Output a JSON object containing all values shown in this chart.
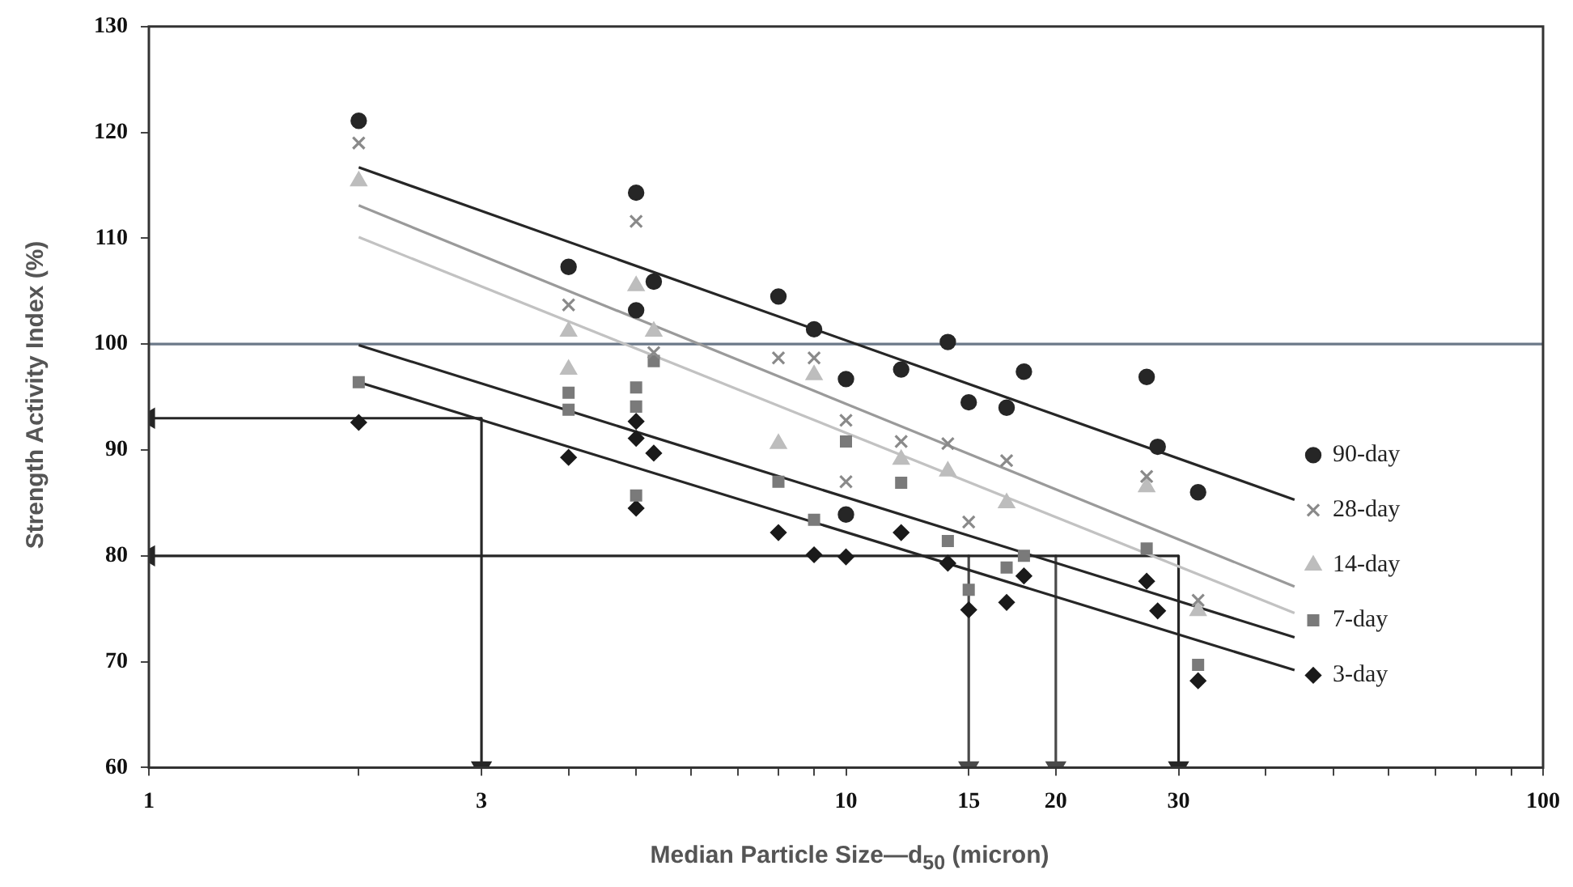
{
  "chart_data": {
    "type": "scatter",
    "xlabel": "Median Particle Size—d$_{50}$ (micron)",
    "ylabel": "Strength Activity Index (%)",
    "log": "x",
    "xlim": [
      1,
      100
    ],
    "ylim": [
      60,
      130
    ],
    "xticks": [
      1,
      {
        "value": 2,
        "label": null
      },
      3,
      {
        "value": 4,
        "label": null
      },
      {
        "value": 5,
        "label": null
      },
      {
        "value": 6,
        "label": null
      },
      {
        "value": 7,
        "label": null
      },
      {
        "value": 8,
        "label": null
      },
      {
        "value": 9,
        "label": null
      },
      10,
      15,
      20,
      30,
      {
        "value": 40,
        "label": null
      },
      {
        "value": 50,
        "label": null
      },
      {
        "value": 60,
        "label": null
      },
      {
        "value": 70,
        "label": null
      },
      {
        "value": 80,
        "label": null
      },
      {
        "value": 90,
        "label": null
      },
      100
    ],
    "yticks": [
      60,
      70,
      80,
      90,
      100,
      110,
      120,
      130
    ],
    "grid": false,
    "legend": "bottom right",
    "ref_lines": [
      {
        "axis": "y",
        "value": 100,
        "color": "#6b7888"
      }
    ],
    "series": [
      {
        "name": "90-day",
        "marker": "circle",
        "color": "#262626",
        "x": [
          2,
          4,
          5,
          5,
          5.3,
          8,
          9,
          10,
          10,
          12,
          14,
          15,
          17,
          18,
          27,
          28,
          32
        ],
        "values": [
          121.1,
          107.3,
          114.3,
          103.2,
          105.9,
          104.5,
          101.4,
          96.7,
          83.9,
          97.6,
          100.2,
          94.5,
          94.0,
          97.4,
          96.9,
          90.3,
          86.0
        ]
      },
      {
        "name": "28-day",
        "marker": "cross",
        "color": "#8a8a8a",
        "x": [
          2,
          4,
          5,
          5.3,
          8,
          9,
          10,
          10,
          12,
          14,
          15,
          17,
          27,
          32
        ],
        "values": [
          119.0,
          103.7,
          111.6,
          99.2,
          98.7,
          98.7,
          92.8,
          87.0,
          90.8,
          90.6,
          83.2,
          89.0,
          87.5,
          75.8
        ]
      },
      {
        "name": "14-day",
        "marker": "triangle",
        "color": "#bdbdbd",
        "x": [
          2,
          4,
          4,
          5,
          5.3,
          8,
          9,
          12,
          14,
          17,
          27,
          32
        ],
        "values": [
          115.4,
          101.2,
          97.6,
          105.5,
          101.2,
          90.6,
          97.1,
          89.1,
          88.0,
          85.0,
          86.5,
          74.8
        ]
      },
      {
        "name": "7-day",
        "marker": "square",
        "color": "#7a7a7a",
        "x": [
          2,
          4,
          4,
          5,
          5,
          5,
          5.3,
          8,
          9,
          10,
          12,
          14,
          15,
          17,
          18,
          27,
          32
        ],
        "values": [
          96.4,
          95.4,
          93.8,
          95.9,
          94.1,
          85.7,
          98.4,
          87.0,
          83.4,
          90.8,
          86.9,
          81.4,
          76.8,
          78.9,
          80.0,
          80.7,
          69.7
        ]
      },
      {
        "name": "3-day",
        "marker": "diamond",
        "color": "#1a1a1a",
        "x": [
          2,
          4,
          5,
          5,
          5,
          5.3,
          8,
          9,
          10,
          12,
          14,
          15,
          17,
          18,
          27,
          28,
          32
        ],
        "values": [
          92.6,
          89.3,
          92.7,
          91.1,
          84.5,
          89.7,
          82.2,
          80.1,
          79.9,
          82.2,
          79.3,
          74.9,
          75.6,
          78.1,
          77.6,
          74.8,
          68.2
        ]
      },
      {
        "type": "line",
        "marker": "none",
        "color": "#262626",
        "x": [
          2,
          44
        ],
        "values": [
          116.7,
          85.3
        ]
      },
      {
        "type": "line",
        "marker": "none",
        "color": "#9a9a9a",
        "x": [
          2,
          44
        ],
        "values": [
          113.1,
          77.1
        ]
      },
      {
        "type": "line",
        "marker": "none",
        "color": "#c2c2c2",
        "x": [
          2,
          44
        ],
        "values": [
          110.1,
          74.6
        ]
      },
      {
        "type": "line",
        "marker": "none",
        "color": "#262626",
        "x": [
          2,
          44
        ],
        "values": [
          99.9,
          72.3
        ]
      },
      {
        "type": "line",
        "marker": "none",
        "color": "#262626",
        "x": [
          2,
          44
        ],
        "values": [
          96.4,
          69.2
        ]
      },
      {
        "type": "line",
        "marker": "triangle",
        "color": "#262626",
        "x": [
          3,
          1
        ],
        "values": [
          93,
          93
        ]
      },
      {
        "type": "line",
        "marker": "triangle",
        "color": "#262626",
        "x": [
          3,
          3
        ],
        "values": [
          93,
          60
        ]
      },
      {
        "type": "line",
        "marker": "triangle",
        "color": "#262626",
        "x": [
          30,
          1
        ],
        "values": [
          80,
          80
        ]
      },
      {
        "type": "line",
        "marker": "triangle",
        "color": "#262626",
        "x": [
          30,
          30
        ],
        "values": [
          80,
          60
        ]
      },
      {
        "type": "line",
        "marker": "triangle",
        "color": "#4a4a4a",
        "x": [
          15,
          15
        ],
        "values": [
          80,
          60
        ]
      },
      {
        "type": "line",
        "marker": "triangle",
        "color": "#4a4a4a",
        "x": [
          20,
          20
        ],
        "values": [
          80,
          60
        ]
      }
    ]
  }
}
